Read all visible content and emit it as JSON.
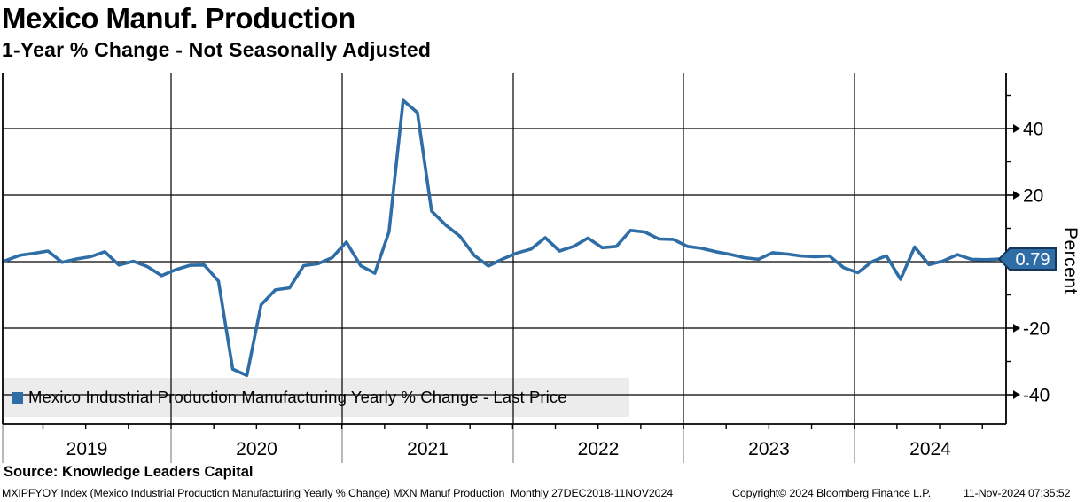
{
  "header": {
    "title": "Mexico Manuf. Production",
    "subtitle": "1-Year % Change - Not Seasonally Adjusted"
  },
  "legend": {
    "label": "Mexico Industrial Production Manufacturing Yearly % Change - Last Price",
    "marker_color": "#2e6da6",
    "background": "#ececec"
  },
  "y_axis": {
    "label": "Percent",
    "major_ticks": [
      40,
      20,
      -20,
      -40
    ],
    "minor_ticks": [
      50,
      30,
      10,
      -10,
      -30
    ],
    "last_price_badge": {
      "value": "0.79",
      "fill": "#2e6da6",
      "border": "#15355a",
      "text_color": "#ffffff"
    }
  },
  "x_axis": {
    "year_labels": [
      "2019",
      "2020",
      "2021",
      "2022",
      "2023",
      "2024"
    ]
  },
  "chart_data": {
    "type": "line",
    "title": "Mexico Manuf. Production",
    "subtitle": "1-Year % Change - Not Seasonally Adjusted",
    "ylabel": "Percent",
    "ylim": [
      -48.8,
      56.8
    ],
    "yticks": [
      40,
      20,
      0,
      -20,
      -40
    ],
    "grid": true,
    "legend_position": "bottom-left",
    "x_years": [
      "2019",
      "2020",
      "2021",
      "2022",
      "2023",
      "2024"
    ],
    "frequency": "monthly",
    "range": "27DEC2018-11NOV2024",
    "last_price": 0.79,
    "series": [
      {
        "name": "Mexico Industrial Production Manufacturing Yearly % Change - Last Price",
        "color": "#2e6da6",
        "x_start": "2018-12",
        "x_end": "2024-10",
        "values": [
          0.3,
          1.9,
          2.5,
          3.2,
          -0.2,
          0.8,
          1.5,
          3.0,
          -1.0,
          0.1,
          -1.5,
          -4.2,
          -2.4,
          -1.1,
          -1.0,
          -5.9,
          -32.3,
          -34.2,
          -13.0,
          -8.5,
          -7.9,
          -1.2,
          -0.6,
          1.2,
          5.9,
          -1.2,
          -3.5,
          8.9,
          48.5,
          44.8,
          15.2,
          11.0,
          7.6,
          1.9,
          -1.3,
          0.8,
          2.6,
          3.8,
          7.2,
          3.2,
          4.6,
          7.1,
          4.2,
          4.6,
          9.4,
          8.9,
          6.8,
          6.7,
          4.6,
          4.0,
          3.0,
          2.2,
          1.2,
          0.7,
          2.7,
          2.3,
          1.7,
          1.5,
          1.7,
          -1.8,
          -3.3,
          0.0,
          1.8,
          -5.3,
          4.4,
          -0.9,
          0.2,
          2.1,
          0.7,
          0.6,
          0.79
        ]
      }
    ]
  },
  "footer": {
    "source_label": "Source: ",
    "source_name": "Knowledge Leaders Capital",
    "description": "MXIPFYOY Index (Mexico Industrial Production Manufacturing Yearly % Change) MXN Manuf Production  Monthly 27DEC2018-11NOV2024",
    "copyright": "Copyright© 2024 Bloomberg Finance L.P.",
    "timestamp": "11-Nov-2024 07:35:52"
  }
}
